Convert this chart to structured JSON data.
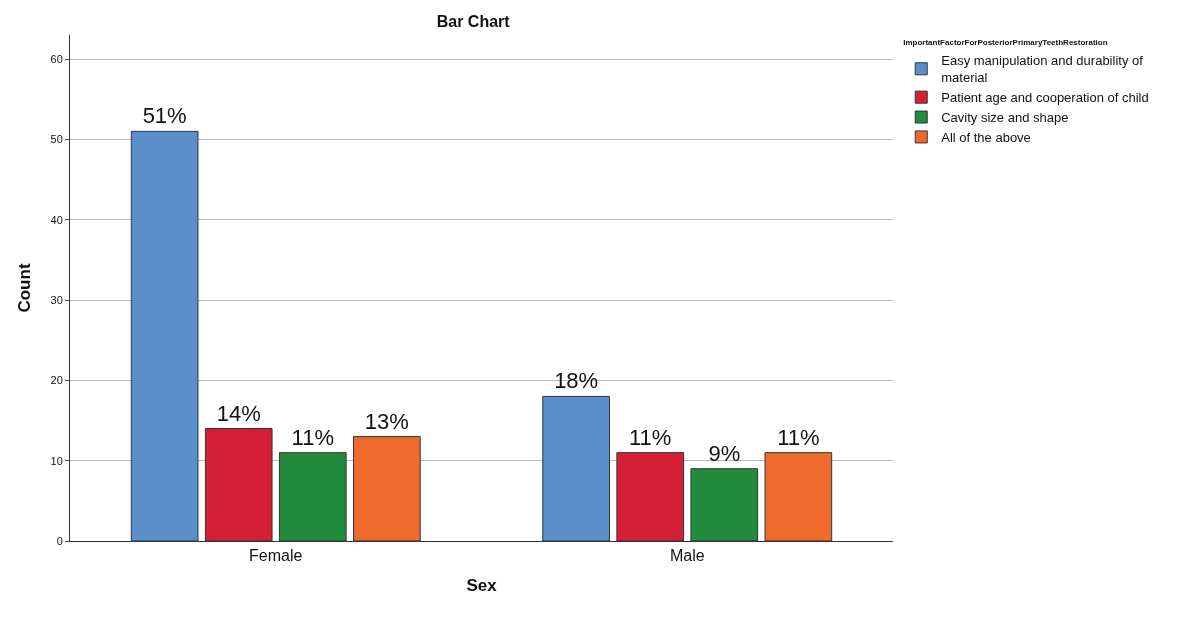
{
  "chart_data": {
    "type": "bar",
    "title": "Bar Chart",
    "xlabel": "Sex",
    "ylabel": "Count",
    "legend_title": "ImportantFactorForPosteriorPrimaryTeethRestoration",
    "categories": [
      "Female",
      "Male"
    ],
    "series": [
      {
        "name": "Easy manipulation and durability of material",
        "color": "#5b8fcc",
        "values": [
          51,
          18
        ],
        "value_labels": [
          "51%",
          "18%"
        ]
      },
      {
        "name": "Patient age and cooperation of child",
        "color": "#d41f36",
        "values": [
          14,
          11
        ],
        "value_labels": [
          "14%",
          "11%"
        ]
      },
      {
        "name": "Cavity size and shape",
        "color": "#228b3d",
        "values": [
          11,
          9
        ],
        "value_labels": [
          "11%",
          "9%"
        ]
      },
      {
        "name": "All of the above",
        "color": "#ef6a2d",
        "values": [
          13,
          11
        ],
        "value_labels": [
          "13%",
          "11%"
        ]
      }
    ],
    "ylim": [
      0,
      63
    ],
    "yticks": [
      0,
      10,
      20,
      30,
      40,
      50,
      60
    ],
    "grid": "y",
    "legend": "top right"
  }
}
